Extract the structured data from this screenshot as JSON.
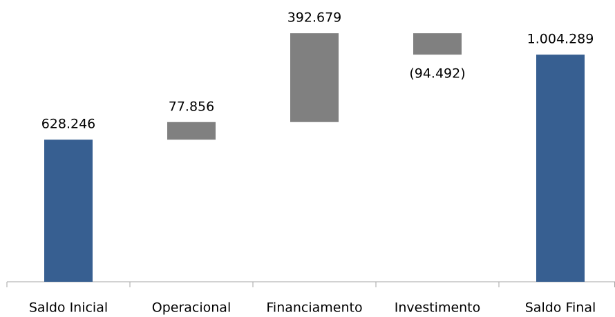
{
  "chart_data": {
    "type": "waterfall",
    "categories": [
      "Saldo Inicial",
      "Operacional",
      "Financiamento",
      "Investimento",
      "Saldo Final"
    ],
    "values": [
      628246,
      77856,
      392679,
      -94492,
      1004289
    ],
    "value_labels": [
      "628.246",
      "77.856",
      "392.679",
      "(94.492)",
      "1.004.289"
    ],
    "colors": [
      "#375f91",
      "#808080",
      "#808080",
      "#808080",
      "#375f91"
    ],
    "ylim": [
      0,
      1200000
    ]
  }
}
